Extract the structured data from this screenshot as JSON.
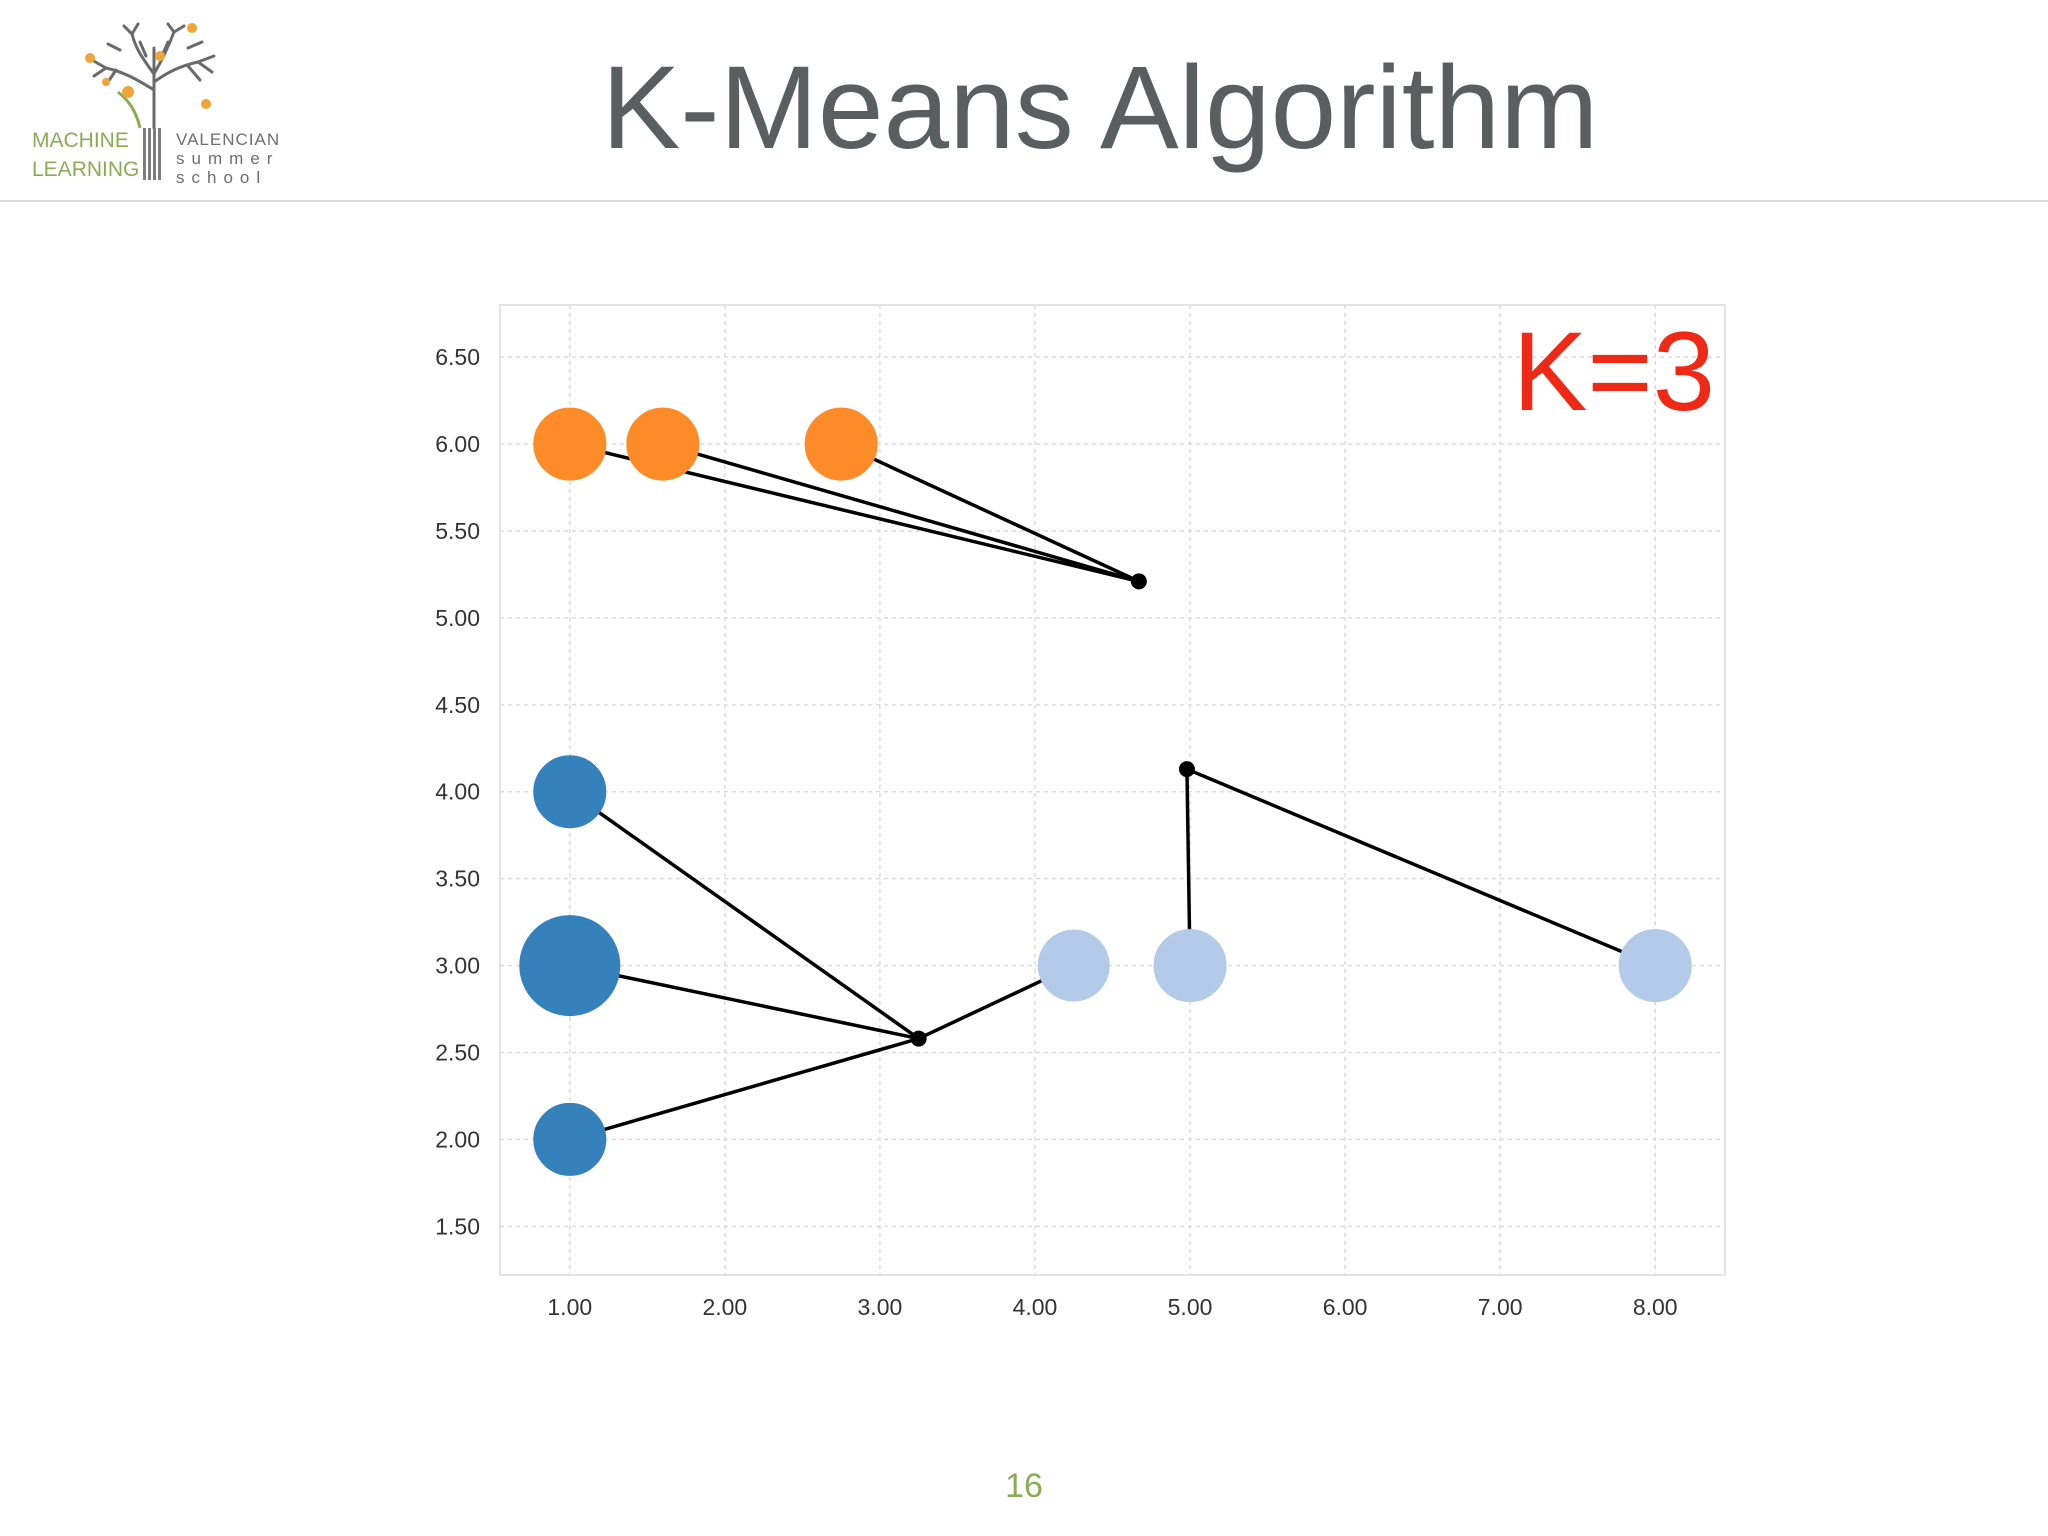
{
  "slide": {
    "title": "K-Means Algorithm",
    "page_number": "16",
    "accent_color": "#8bab55"
  },
  "logo": {
    "line1": "MACHINE",
    "line2": "LEARNING",
    "school_line1": "VALENCIAN",
    "school_line2": "summer",
    "school_line3": "school",
    "icon": "tree-icon"
  },
  "chart_data": {
    "type": "scatter",
    "annotation": "K=3",
    "annotation_color": "#ee2a17",
    "x_ticks": [
      "1.00",
      "2.00",
      "3.00",
      "4.00",
      "5.00",
      "6.00",
      "7.00",
      "8.00"
    ],
    "y_ticks": [
      "1.50",
      "2.00",
      "2.50",
      "3.00",
      "3.50",
      "4.00",
      "4.50",
      "5.00",
      "5.50",
      "6.00",
      "6.50"
    ],
    "xlim": [
      0.55,
      8.45
    ],
    "ylim": [
      1.22,
      6.8
    ],
    "grid": true,
    "clusters": [
      {
        "color": "#fd8b27",
        "centroid": [
          4.67,
          5.21
        ],
        "points": [
          {
            "x": 1.0,
            "y": 6.0,
            "size": 1
          },
          {
            "x": 1.6,
            "y": 6.0,
            "size": 1
          },
          {
            "x": 2.75,
            "y": 6.0,
            "size": 1
          }
        ]
      },
      {
        "color": "#3581bb",
        "centroid": [
          3.25,
          2.58
        ],
        "points": [
          {
            "x": 1.0,
            "y": 4.0,
            "size": 1
          },
          {
            "x": 1.0,
            "y": 3.0,
            "size": 2
          },
          {
            "x": 1.0,
            "y": 2.0,
            "size": 1
          }
        ]
      },
      {
        "color": "#b3cae8",
        "centroid": [
          4.98,
          4.13
        ],
        "points": [
          {
            "x": 5.0,
            "y": 3.0,
            "size": 1
          },
          {
            "x": 8.0,
            "y": 3.0,
            "size": 1
          }
        ]
      }
    ],
    "extra_links": [
      {
        "from": [
          4.25,
          3.0
        ],
        "to": [
          3.25,
          2.58
        ]
      }
    ],
    "extra_points": [
      {
        "x": 4.25,
        "y": 3.0,
        "size": 1,
        "color": "#b3cae8"
      }
    ]
  }
}
